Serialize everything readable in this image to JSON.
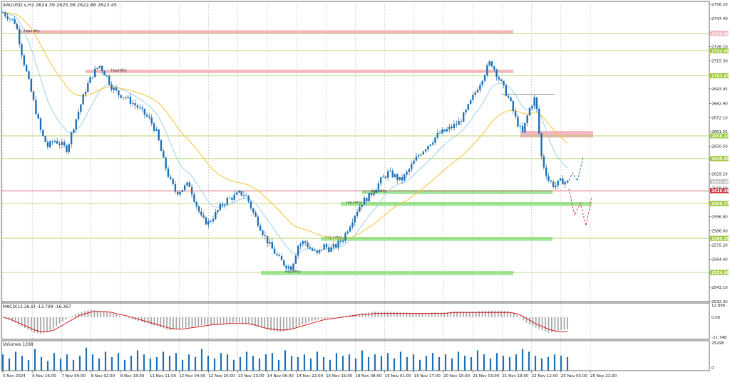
{
  "symbol_header": "XAUUSD.s,H1  2624.39 2625.08 2622.86 2623.45",
  "macd_header": "MACD(12,26,9) -13.799 -16.367",
  "volumes_header": "Volumes 1268",
  "colors": {
    "bg": "#ffffff",
    "grid": "#8c8c8c",
    "candle": "#1f6fb6",
    "ema_fast": "#9fd0ef",
    "ema_slow": "#f5c842",
    "hline": "#9dc83a",
    "current": "#d0384a",
    "liq_red": "#f4b7bf",
    "liq_green": "#9ee69a",
    "macd_hist": "#a8a8a8",
    "macd_signal": "#d01919",
    "volume": "#1f6fb6"
  },
  "chart_data": {
    "type": "candlestick",
    "ylim": [
      2532.3,
      2758.2
    ],
    "y_ticks": [
      "2758.20",
      "2747.40",
      "2736.85",
      "2726.10",
      "2715.30",
      "2704.75",
      "2693.95",
      "2682.90",
      "2672.10",
      "2661.55",
      "2650.50",
      "2640.20",
      "2629.20",
      "2618.60",
      "2607.60",
      "2596.80",
      "2586.00",
      "2575.20",
      "2564.40",
      "2553.60",
      "2543.10",
      "2532.30"
    ],
    "x_ticks": [
      "5 Nov 2024",
      "6 Nov 16:00",
      "7 Nov 09:00",
      "8 Nov 02:00",
      "8 Nov 18:00",
      "11 Nov 11:00",
      "12 Nov 04:00",
      "12 Nov 20:00",
      "13 Nov 13:00",
      "14 Nov 06:00",
      "14 Nov 22:00",
      "15 Nov 15:00",
      "18 Nov 08:00",
      "19 Nov 01:00",
      "19 Nov 17:00",
      "20 Nov 10:00",
      "21 Nov 03:00",
      "21 Nov 19:00",
      "22 Nov 12:00",
      "25 Nov 05:00",
      "25 Nov 21:00"
    ],
    "close_path": [
      2752,
      2748,
      2744,
      2720,
      2700,
      2680,
      2660,
      2650,
      2655,
      2652,
      2648,
      2665,
      2680,
      2695,
      2705,
      2712,
      2705,
      2695,
      2690,
      2688,
      2684,
      2680,
      2675,
      2670,
      2660,
      2640,
      2625,
      2615,
      2618,
      2622,
      2608,
      2595,
      2592,
      2598,
      2605,
      2610,
      2612,
      2615,
      2612,
      2600,
      2590,
      2580,
      2572,
      2565,
      2560,
      2558,
      2575,
      2578,
      2572,
      2568,
      2575,
      2572,
      2575,
      2580,
      2590,
      2600,
      2608,
      2612,
      2618,
      2625,
      2630,
      2628,
      2624,
      2630,
      2638,
      2645,
      2650,
      2655,
      2660,
      2662,
      2665,
      2668,
      2675,
      2685,
      2695,
      2705,
      2715,
      2705,
      2695,
      2685,
      2670,
      2660,
      2678,
      2688,
      2640,
      2625,
      2620,
      2624,
      2623
    ],
    "macd_hist": [
      0,
      -3,
      -6,
      -10,
      -14,
      -17,
      -18,
      -16,
      -12,
      -6,
      -2,
      2,
      5,
      7,
      8,
      7,
      6,
      4,
      2,
      0,
      -2,
      -4,
      -6,
      -8,
      -10,
      -12,
      -14,
      -13,
      -12,
      -11,
      -10,
      -9,
      -8,
      -8,
      -7,
      -7,
      -6,
      -6,
      -7,
      -9,
      -11,
      -13,
      -15,
      -16,
      -15,
      -13,
      -10,
      -7,
      -5,
      -3,
      -2,
      -1,
      0,
      1,
      2,
      3,
      4,
      5,
      6,
      6,
      6,
      6,
      5,
      5,
      4,
      4,
      4,
      5,
      5,
      5,
      6,
      6,
      6,
      6,
      6,
      7,
      7,
      7,
      7,
      6,
      3,
      -3,
      -8,
      -11,
      -14,
      -17,
      -16,
      -14,
      -13
    ],
    "macd_signal": [
      0,
      -2,
      -5,
      -8,
      -11,
      -14,
      -16,
      -16,
      -14,
      -10,
      -6,
      -2,
      2,
      4,
      6,
      6,
      6,
      5,
      3,
      2,
      0,
      -2,
      -4,
      -6,
      -8,
      -10,
      -12,
      -13,
      -13,
      -12,
      -11,
      -10,
      -9,
      -8,
      -8,
      -7,
      -7,
      -7,
      -7,
      -8,
      -10,
      -12,
      -13,
      -14,
      -14,
      -13,
      -11,
      -9,
      -7,
      -5,
      -3,
      -2,
      -1,
      0,
      1,
      2,
      3,
      3,
      4,
      4,
      4,
      4,
      4,
      4,
      4,
      4,
      4,
      4,
      4,
      4,
      5,
      5,
      5,
      5,
      5,
      5,
      5,
      5,
      5,
      5,
      4,
      1,
      -3,
      -7,
      -10,
      -13,
      -15,
      -16,
      -16
    ],
    "volume": [
      12,
      9,
      14,
      11,
      8,
      16,
      10,
      7,
      13,
      9,
      12,
      8,
      11,
      17,
      12,
      9,
      14,
      10,
      13,
      8,
      11,
      15,
      12,
      9,
      10,
      14,
      11,
      13,
      8,
      12,
      10,
      16,
      11,
      9,
      13,
      12,
      8,
      10,
      14,
      11,
      9,
      12,
      13,
      8,
      15,
      11,
      10,
      12,
      9,
      14,
      10,
      8,
      13,
      11,
      12,
      9,
      15,
      10,
      12,
      11,
      13,
      9,
      14,
      10,
      12,
      8,
      11,
      13,
      10,
      12,
      9,
      14,
      11,
      10,
      15,
      12,
      9,
      13,
      11,
      10,
      12,
      16,
      14,
      11,
      9,
      10,
      12,
      11,
      10
    ],
    "macd_y_ticks": [
      "12.896",
      "0.00",
      "-21.748"
    ],
    "volume_y_ticks": [
      "25298",
      "0"
    ]
  },
  "right_labels": [
    {
      "price": 2735.88,
      "text": "2735.88",
      "color": "#f4b7bf"
    },
    {
      "price": 2722.86,
      "text": "2722.86",
      "color": "#9dc83a"
    },
    {
      "price": 2703.85,
      "text": "2703.85",
      "color": "#9dc83a"
    },
    {
      "price": 2658.24,
      "text": "2658.24",
      "color": "#9dc83a"
    },
    {
      "price": 2640.99,
      "text": "2640.99",
      "color": "#9dc83a"
    },
    {
      "price": 2623.45,
      "text": "2623.45",
      "color": "#c0c0c0"
    },
    {
      "price": 2616.49,
      "text": "2616.49",
      "color": "#d0384a"
    },
    {
      "price": 2606.77,
      "text": "2606.77",
      "color": "#9dc83a"
    },
    {
      "price": 2580.39,
      "text": "2580.39",
      "color": "#9dc83a"
    },
    {
      "price": 2554.48,
      "text": "2554.48",
      "color": "#9dc83a"
    }
  ],
  "liquidity_label": "liquidity"
}
